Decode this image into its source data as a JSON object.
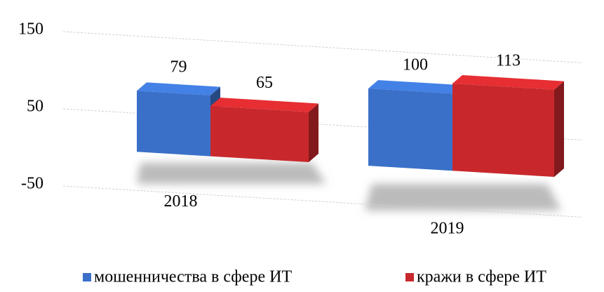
{
  "chart_data": {
    "type": "bar3d",
    "categories": [
      "2018",
      "2019"
    ],
    "series": [
      {
        "name": "мошенничества в сфере ИТ",
        "color": "#3a70c8",
        "values": [
          79,
          100
        ]
      },
      {
        "name": "кражи в сфере ИТ",
        "color": "#c8282c",
        "values": [
          65,
          113
        ]
      }
    ],
    "ylim": [
      -50,
      150
    ],
    "yticks": [
      -50,
      50,
      150
    ],
    "grid": true,
    "legend": "bottom"
  }
}
